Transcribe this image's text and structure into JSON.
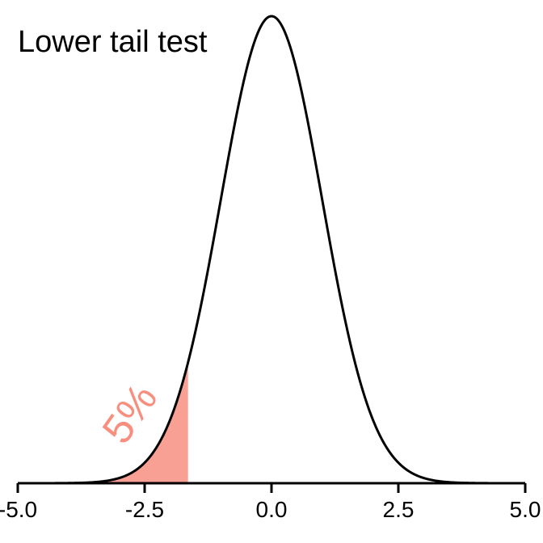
{
  "chart_data": {
    "type": "area",
    "title": "Lower tail test",
    "xlabel": "",
    "ylabel": "",
    "xlim": [
      -5.0,
      5.0
    ],
    "xticks": [
      -5.0,
      -2.5,
      0.0,
      2.5,
      5.0
    ],
    "xtick_labels": [
      "-5.0",
      "-2.5",
      "0.0",
      "2.5",
      "5.0"
    ],
    "curve": {
      "distribution": "standard normal",
      "mean": 0,
      "sd": 1
    },
    "shaded_region": {
      "from": -5.0,
      "to": -1.645,
      "label": "5%",
      "color": "#f9a094",
      "label_color": "#f78e7e"
    },
    "curve_color": "#000000",
    "grid": false
  }
}
